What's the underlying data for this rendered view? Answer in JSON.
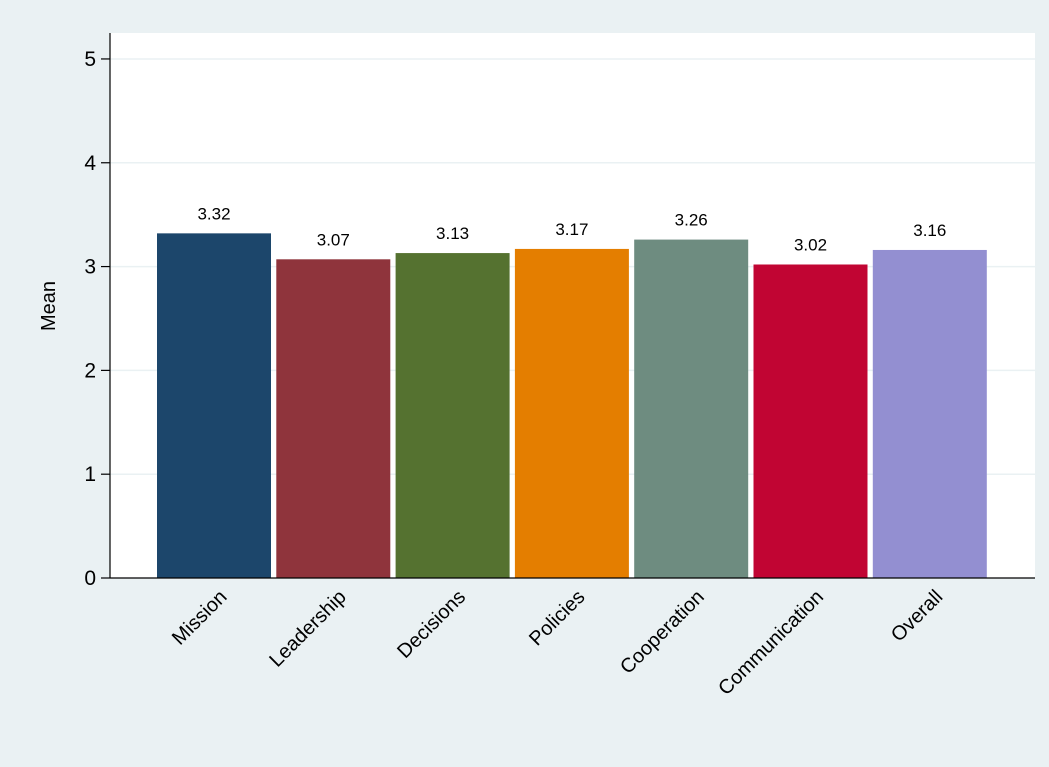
{
  "colors": {
    "outer_background": "#eaf1f3",
    "plot_background": "#ffffff",
    "gridline": "#eaf1f3",
    "axis": "#000000"
  },
  "chart_data": {
    "type": "bar",
    "title": "",
    "xlabel": "",
    "ylabel": "Mean",
    "ylim": [
      0,
      5.25
    ],
    "yticks": [
      0,
      1,
      2,
      3,
      4,
      5
    ],
    "grid": true,
    "categories": [
      "Mission",
      "Leadership",
      "Decisions",
      "Policies",
      "Cooperation",
      "Communication",
      "Overall"
    ],
    "values": [
      3.32,
      3.07,
      3.13,
      3.17,
      3.26,
      3.02,
      3.16
    ],
    "value_labels": [
      "3.32",
      "3.07",
      "3.13",
      "3.17",
      "3.26",
      "3.02",
      "3.16"
    ],
    "bar_colors": [
      "#1c466b",
      "#8f343c",
      "#557230",
      "#e47e00",
      "#6e8c80",
      "#c10533",
      "#938fd1"
    ]
  }
}
